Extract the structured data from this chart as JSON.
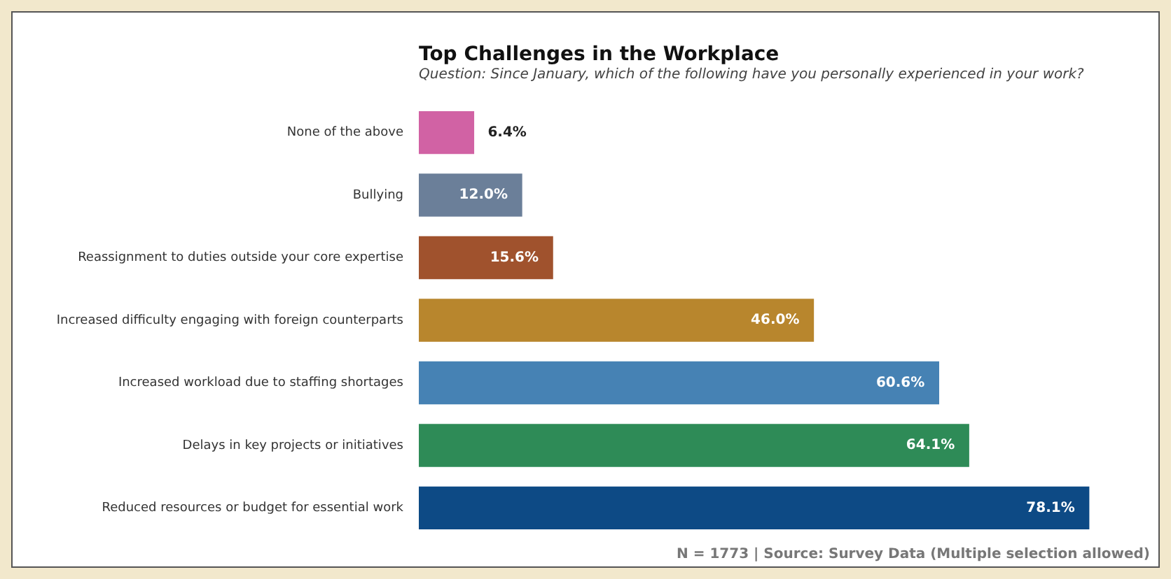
{
  "chart_data": {
    "type": "bar",
    "orientation": "horizontal",
    "title": "Top Challenges in the Workplace",
    "subtitle": "Question: Since January, which of the following have you personally experienced in your work?",
    "categories": [
      "None of the above",
      "Bullying",
      "Reassignment to duties outside your core expertise",
      "Increased difficulty engaging with foreign counterparts",
      "Increased workload due to staffing shortages",
      "Delays in key projects or initiatives",
      "Reduced resources or budget for essential work"
    ],
    "values": [
      6.4,
      12.0,
      15.6,
      46.0,
      60.6,
      64.1,
      78.1
    ],
    "colors": [
      "#d162a4",
      "#6b7f99",
      "#a0522d",
      "#b8862d",
      "#4682b4",
      "#2e8b57",
      "#0d4a85"
    ],
    "value_labels": [
      "6.4%",
      "12.0%",
      "15.6%",
      "46.0%",
      "60.6%",
      "64.1%",
      "78.1%"
    ],
    "tick_labels": "y",
    "annotations": [
      "N = 1773 | Source: Survey Data (Multiple selection allowed)"
    ]
  }
}
